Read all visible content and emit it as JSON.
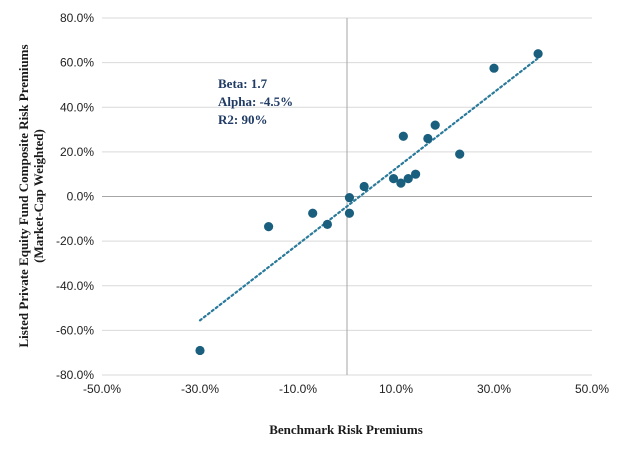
{
  "chart_data": {
    "type": "scatter",
    "xlabel": "Benchmark  Risk Premiums",
    "ylabel_lines": [
      "Listed Private  Equity  Fund  Composite  Risk Premiums",
      "(Market-Cap Weighted)"
    ],
    "xlim": [
      -50,
      50
    ],
    "ylim": [
      -80,
      80
    ],
    "x_ticks": [
      -50,
      -30,
      -10,
      10,
      30,
      50
    ],
    "x_tick_labels": [
      "-50.0%",
      "-30.0%",
      "-10.0%",
      "10.0%",
      "30.0%",
      "50.0%"
    ],
    "y_ticks": [
      80,
      60,
      40,
      20,
      0,
      -20,
      -40,
      -60,
      -80
    ],
    "y_tick_labels": [
      "80.0%",
      "60.0%",
      "40.0%",
      "20.0%",
      "0.0%",
      "-20.0%",
      "-40.0%",
      "-60.0%",
      "-80.0%"
    ],
    "points": [
      {
        "x": -30.0,
        "y": -69.0
      },
      {
        "x": -16.0,
        "y": -13.5
      },
      {
        "x": -7.0,
        "y": -7.5
      },
      {
        "x": -4.0,
        "y": -12.5
      },
      {
        "x": 0.5,
        "y": -0.5
      },
      {
        "x": 0.5,
        "y": -7.5
      },
      {
        "x": 3.5,
        "y": 4.5
      },
      {
        "x": 9.5,
        "y": 8.0
      },
      {
        "x": 11.0,
        "y": 6.0
      },
      {
        "x": 11.5,
        "y": 27.0
      },
      {
        "x": 12.5,
        "y": 8.0
      },
      {
        "x": 14.0,
        "y": 10.0
      },
      {
        "x": 16.5,
        "y": 26.0
      },
      {
        "x": 18.0,
        "y": 32.0
      },
      {
        "x": 23.0,
        "y": 19.0
      },
      {
        "x": 30.0,
        "y": 57.5
      },
      {
        "x": 39.0,
        "y": 64.0
      }
    ],
    "trendline": {
      "style": "dotted",
      "x": [
        -30,
        39
      ],
      "y": [
        -55.5,
        62.0
      ]
    },
    "annotations": [
      "Beta: 1.7",
      "Alpha:  -4.5%",
      "R2: 90%"
    ],
    "grid": "horizontal gridlines",
    "legend": "none",
    "colors": {
      "marker": "#1b5f7e",
      "trendline": "#2a7a9b",
      "grid": "#d9d9d9",
      "zero_line": "#a6a6a6"
    }
  }
}
